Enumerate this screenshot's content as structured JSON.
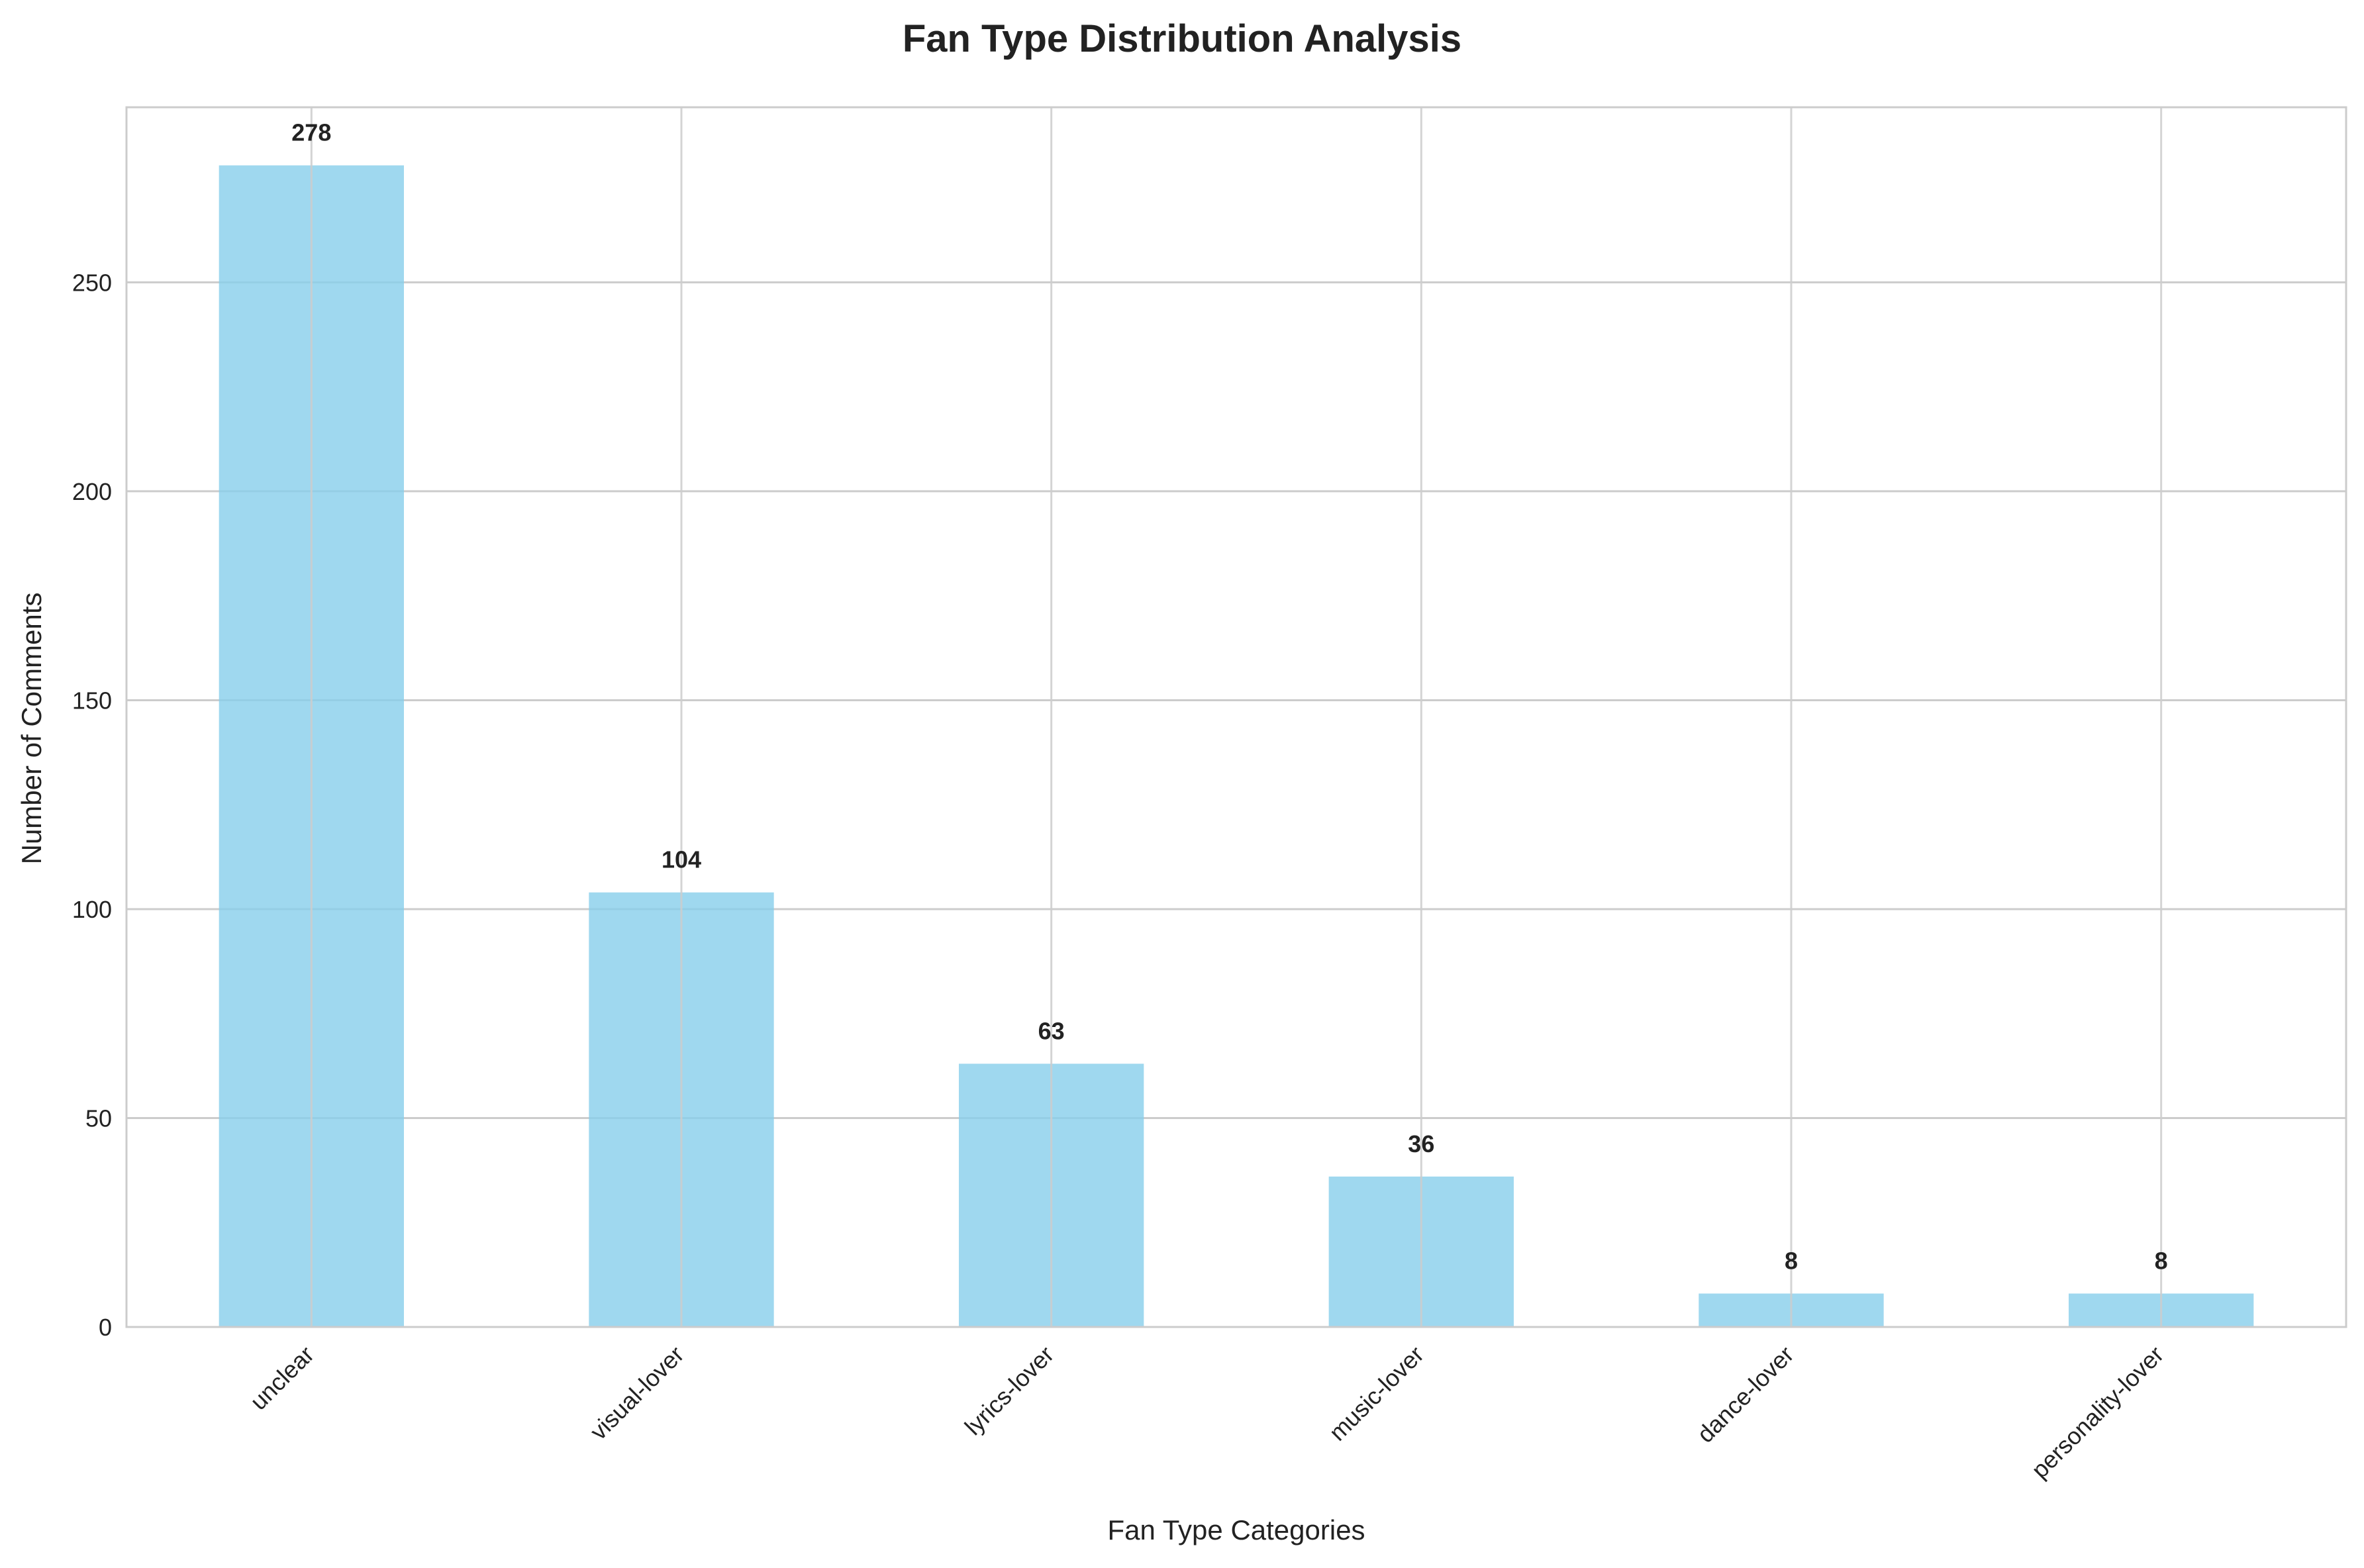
{
  "chart_data": {
    "type": "bar",
    "title": "Fan Type Distribution Analysis",
    "xlabel": "Fan Type Categories",
    "ylabel": "Number of Comments",
    "categories": [
      "unclear",
      "visual-lover",
      "lyrics-lover",
      "music-lover",
      "dance-lover",
      "personality-lover"
    ],
    "values": [
      278,
      104,
      63,
      36,
      8,
      8
    ],
    "data_labels": [
      "278",
      "104",
      "63",
      "36",
      "8",
      "8"
    ],
    "y_ticks": [
      0,
      50,
      100,
      150,
      200,
      250
    ],
    "y_tick_labels": [
      "0",
      "50",
      "100",
      "150",
      "200",
      "250"
    ],
    "ylim": [
      0,
      291.9
    ],
    "grid": true,
    "bar_color": "#87CEEB",
    "grid_color": "#cccccc",
    "text_color": "#222222"
  }
}
